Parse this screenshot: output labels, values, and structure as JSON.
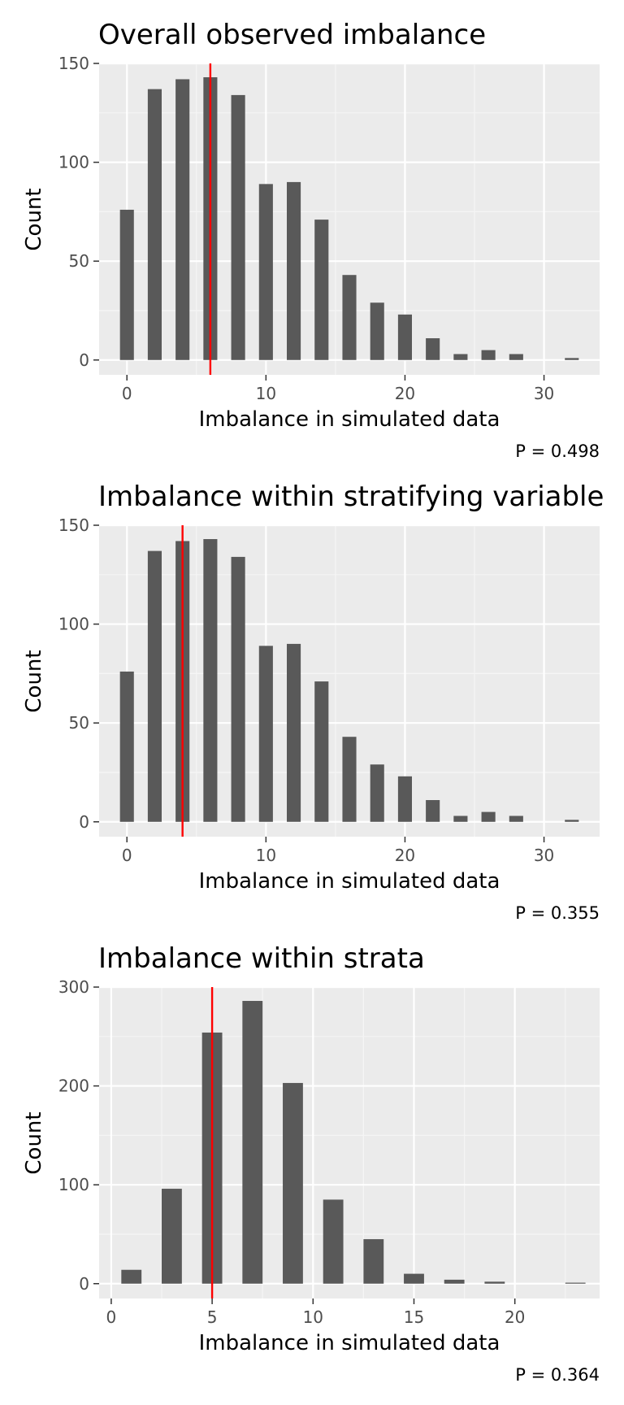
{
  "colors": {
    "panel_background": "#ebebeb",
    "grid_major": "#ffffff",
    "grid_minor": "#f5f5f5",
    "bar_fill": "#595959",
    "reference_line": "#ff0000",
    "tick_color": "#333333",
    "tick_label": "#4d4d4d"
  },
  "chart_data": [
    {
      "type": "bar",
      "title": "Overall observed imbalance",
      "xlabel": "Imbalance in simulated data",
      "ylabel": "Count",
      "x": [
        0,
        2,
        4,
        6,
        8,
        10,
        12,
        14,
        16,
        18,
        20,
        22,
        24,
        26,
        28,
        32
      ],
      "values": [
        76,
        137,
        142,
        143,
        134,
        89,
        90,
        71,
        43,
        29,
        23,
        11,
        3,
        5,
        3,
        1
      ],
      "xlim": [
        -2,
        34
      ],
      "ylim": [
        -7.5,
        150
      ],
      "xticks": [
        0,
        10,
        20,
        30
      ],
      "yticks": [
        0,
        50,
        100,
        150
      ],
      "reference_line_x": 6,
      "annotation": "P = 0.498",
      "grid": true
    },
    {
      "type": "bar",
      "title": "Imbalance within stratifying variable",
      "xlabel": "Imbalance in simulated data",
      "ylabel": "Count",
      "x": [
        0,
        2,
        4,
        6,
        8,
        10,
        12,
        14,
        16,
        18,
        20,
        22,
        24,
        26,
        28,
        32
      ],
      "values": [
        76,
        137,
        142,
        143,
        134,
        89,
        90,
        71,
        43,
        29,
        23,
        11,
        3,
        5,
        3,
        1
      ],
      "xlim": [
        -2,
        34
      ],
      "ylim": [
        -7.5,
        150
      ],
      "xticks": [
        0,
        10,
        20,
        30
      ],
      "yticks": [
        0,
        50,
        100,
        150
      ],
      "reference_line_x": 4,
      "annotation": "P = 0.355",
      "grid": true
    },
    {
      "type": "bar",
      "title": "Imbalance within strata",
      "xlabel": "Imbalance in simulated data",
      "ylabel": "Count",
      "x": [
        1,
        3,
        5,
        7,
        9,
        11,
        13,
        15,
        17,
        19,
        23
      ],
      "values": [
        14,
        96,
        254,
        286,
        203,
        85,
        45,
        10,
        4,
        2,
        1
      ],
      "xlim": [
        -0.6,
        24.2
      ],
      "ylim": [
        -15,
        300
      ],
      "xticks": [
        0,
        5,
        10,
        15,
        20
      ],
      "yticks": [
        0,
        100,
        200,
        300
      ],
      "reference_line_x": 5,
      "annotation": "P = 0.364",
      "grid": true
    }
  ]
}
